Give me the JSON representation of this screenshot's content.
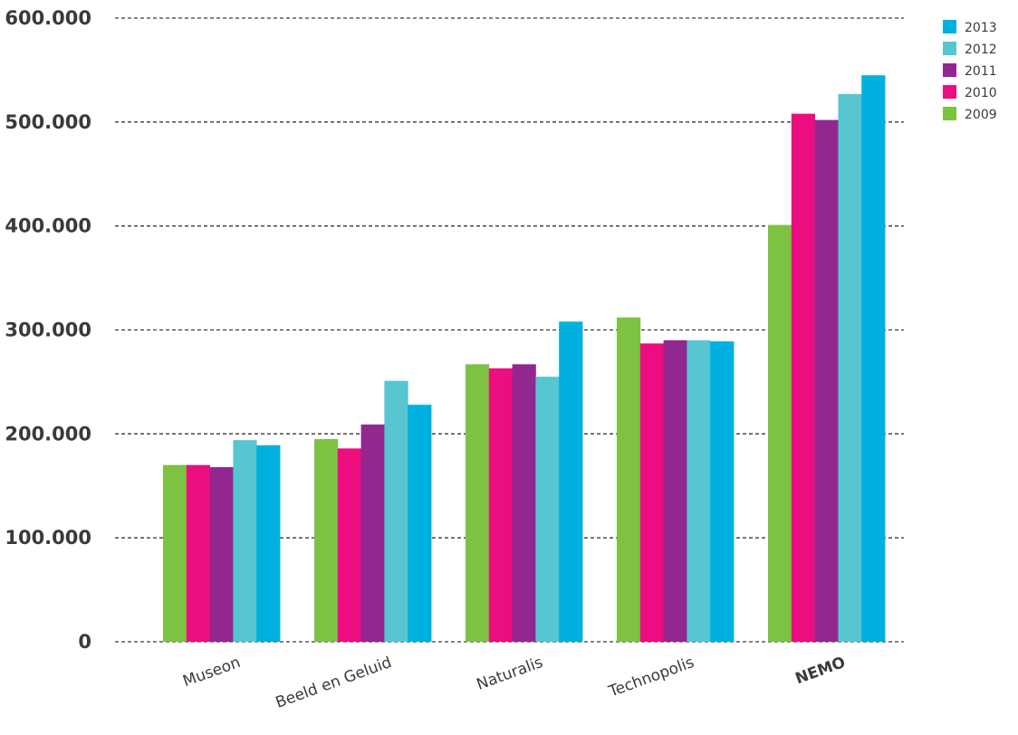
{
  "chart_data": {
    "type": "bar",
    "title": "",
    "xlabel": "",
    "ylabel": "",
    "ylim": [
      0,
      600000
    ],
    "grid": true,
    "legend_position": "top-right",
    "yticks": [
      0,
      100000,
      200000,
      300000,
      400000,
      500000,
      600000
    ],
    "ytick_labels": [
      "0",
      "100.000",
      "200.000",
      "300.000",
      "400.000",
      "500.000",
      "600.000"
    ],
    "categories": [
      "Museon",
      "Beeld en Geluid",
      "Naturalis",
      "Technopolis",
      "NEMO"
    ],
    "bold_categories": [
      "NEMO"
    ],
    "series": [
      {
        "name": "2009",
        "color": "#7dc242",
        "values": [
          170000,
          195000,
          267000,
          312000,
          401000
        ]
      },
      {
        "name": "2010",
        "color": "#ec0d80",
        "values": [
          170000,
          186000,
          263000,
          287000,
          508000
        ]
      },
      {
        "name": "2011",
        "color": "#92278f",
        "values": [
          168000,
          209000,
          267000,
          290000,
          502000
        ]
      },
      {
        "name": "2012",
        "color": "#57c6d0",
        "values": [
          194000,
          251000,
          255000,
          290000,
          527000
        ]
      },
      {
        "name": "2013",
        "color": "#00b0de",
        "values": [
          189000,
          228000,
          308000,
          289000,
          545000
        ]
      }
    ],
    "legend_order": [
      "2013",
      "2012",
      "2011",
      "2010",
      "2009"
    ]
  }
}
